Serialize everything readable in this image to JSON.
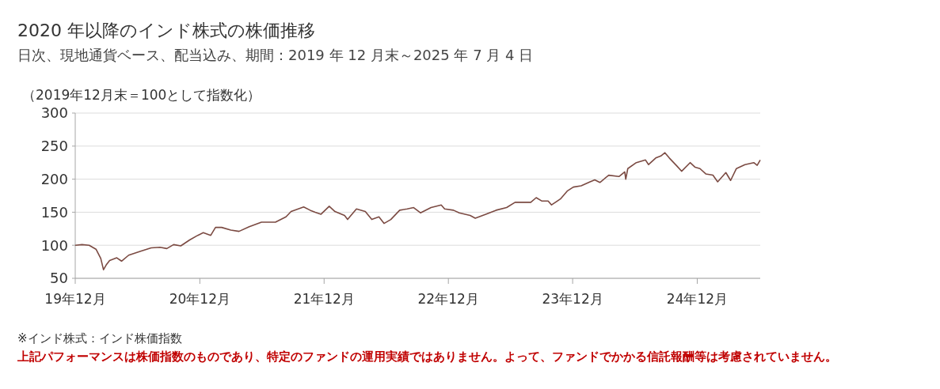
{
  "chart_data": {
    "type": "line",
    "title": "2020 年以降のインド株式の株価推移",
    "subtitle": "日次、現地通貨ベース、配当込み、期間：2019 年 12 月末～2025 年 7 月 4 日",
    "ylabel": "（2019年12月末＝100として指数化）",
    "x": [
      "2019-12-31",
      "2020-01-20",
      "2020-02-10",
      "2020-03-01",
      "2020-03-15",
      "2020-03-23",
      "2020-04-01",
      "2020-04-10",
      "2020-05-01",
      "2020-05-15",
      "2020-06-05",
      "2020-07-10",
      "2020-08-10",
      "2020-09-05",
      "2020-09-25",
      "2020-10-15",
      "2020-11-05",
      "2020-12-01",
      "2020-12-25",
      "2021-01-10",
      "2021-02-01",
      "2021-02-15",
      "2021-03-05",
      "2021-04-01",
      "2021-04-25",
      "2021-05-25",
      "2021-06-30",
      "2021-08-10",
      "2021-09-10",
      "2021-09-25",
      "2021-11-01",
      "2021-11-20",
      "2021-12-05",
      "2021-12-22",
      "2022-01-15",
      "2022-02-01",
      "2022-03-01",
      "2022-03-10",
      "2022-04-05",
      "2022-05-01",
      "2022-05-20",
      "2022-06-10",
      "2022-06-25",
      "2022-07-15",
      "2022-08-10",
      "2022-09-01",
      "2022-09-20",
      "2022-10-10",
      "2022-11-10",
      "2022-12-10",
      "2022-12-20",
      "2023-01-15",
      "2023-02-01",
      "2023-03-05",
      "2023-03-20",
      "2023-04-20",
      "2023-05-20",
      "2023-06-20",
      "2023-07-15",
      "2023-08-05",
      "2023-08-30",
      "2023-09-15",
      "2023-10-01",
      "2023-10-20",
      "2023-10-30",
      "2023-11-25",
      "2023-12-15",
      "2024-01-02",
      "2024-01-25",
      "2024-02-20",
      "2024-03-05",
      "2024-03-20",
      "2024-04-15",
      "2024-05-15",
      "2024-06-01",
      "2024-06-04",
      "2024-06-10",
      "2024-07-05",
      "2024-08-01",
      "2024-08-10",
      "2024-08-31",
      "2024-09-15",
      "2024-09-27",
      "2024-10-10",
      "2024-11-01",
      "2024-11-15",
      "2024-12-10",
      "2024-12-25",
      "2025-01-08",
      "2025-01-25",
      "2025-02-15",
      "2025-03-01",
      "2025-03-25",
      "2025-04-08",
      "2025-04-25",
      "2025-05-20",
      "2025-06-15",
      "2025-06-25",
      "2025-07-04"
    ],
    "series": [
      {
        "color": "#7b4a42",
        "values": [
          100,
          101,
          100,
          94,
          80,
          63,
          71,
          77,
          81,
          76,
          85,
          91,
          96,
          97,
          95,
          101,
          99,
          108,
          115,
          119,
          115,
          127,
          127,
          123,
          121,
          128,
          135,
          135,
          143,
          151,
          158,
          153,
          150,
          147,
          159,
          151,
          145,
          139,
          155,
          151,
          139,
          143,
          133,
          139,
          153,
          155,
          157,
          149,
          157,
          161,
          155,
          153,
          149,
          145,
          141,
          147,
          153,
          157,
          165,
          165,
          165,
          172,
          167,
          167,
          161,
          170,
          182,
          188,
          190,
          196,
          199,
          195,
          206,
          204,
          211,
          200,
          216,
          225,
          229,
          222,
          232,
          235,
          240,
          232,
          220,
          212,
          225,
          218,
          216,
          208,
          206,
          196,
          210,
          198,
          216,
          222,
          225,
          221,
          229
        ]
      }
    ],
    "xlim": [
      "2019-12-31",
      "2025-07-04"
    ],
    "xticks": [
      {
        "value": "2019-12-31",
        "label": "19年12月"
      },
      {
        "value": "2020-12-31",
        "label": "20年12月"
      },
      {
        "value": "2021-12-31",
        "label": "21年12月"
      },
      {
        "value": "2022-12-31",
        "label": "22年12月"
      },
      {
        "value": "2023-12-31",
        "label": "23年12月"
      },
      {
        "value": "2024-12-31",
        "label": "24年12月"
      }
    ],
    "ylim": [
      50,
      300
    ],
    "yticks": [
      50,
      100,
      150,
      200,
      250,
      300
    ],
    "grid": "y",
    "annotations": [
      "※インド株式：インド株価指数",
      "上記パフォーマンスは株価指数のものであり、特定のファンドの運用実績ではありません。よって、ファンドでかかる信託報酬等は考慮されていません。"
    ]
  }
}
